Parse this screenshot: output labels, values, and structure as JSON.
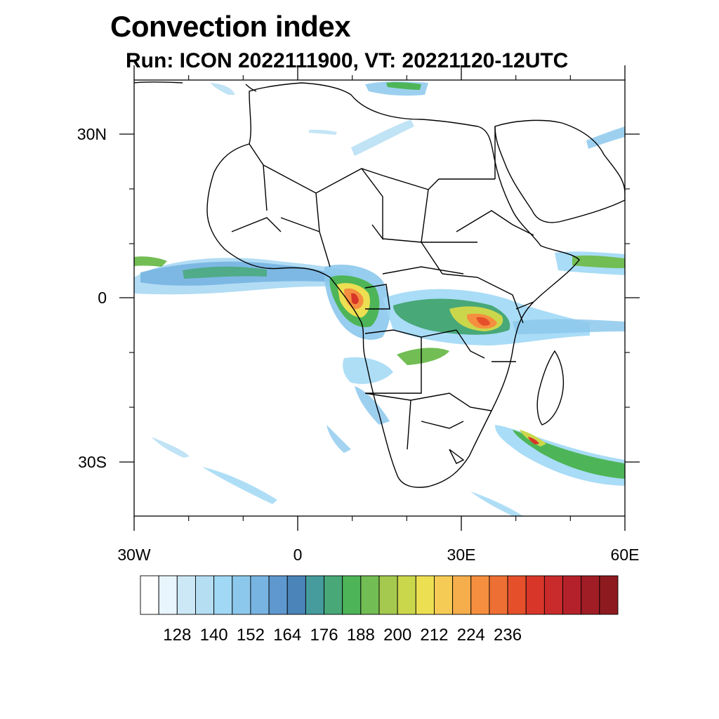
{
  "title": "Convection index",
  "subtitle": "Run: ICON 2022111900,  VT: 20221120-12UTC",
  "map": {
    "region": "Africa",
    "lon_range": [
      -30,
      60
    ],
    "lat_range": [
      -40,
      40
    ],
    "lon_ticks": [
      {
        "value": -30,
        "label": "30W"
      },
      {
        "value": 0,
        "label": "0"
      },
      {
        "value": 30,
        "label": "30E"
      },
      {
        "value": 60,
        "label": "60E"
      }
    ],
    "lat_ticks": [
      {
        "value": 30,
        "label": "30N"
      },
      {
        "value": 0,
        "label": "0"
      },
      {
        "value": -30,
        "label": "30S"
      }
    ]
  },
  "colorbar": {
    "labels": [
      "128",
      "140",
      "152",
      "164",
      "176",
      "188",
      "200",
      "212",
      "224",
      "236"
    ],
    "colors": [
      "#ffffff",
      "#e8f5fc",
      "#cce8f6",
      "#b5def3",
      "#a0d8f5",
      "#8cc8ec",
      "#78b4e2",
      "#5e98cf",
      "#4a84b8",
      "#469c9c",
      "#48a878",
      "#4db557",
      "#72bd54",
      "#a4c94e",
      "#cbd74b",
      "#eddf52",
      "#f5cb55",
      "#f6ad4c",
      "#f58f3f",
      "#ee6f33",
      "#e5502b",
      "#d9362a",
      "#c92a2b",
      "#b5212a",
      "#a01d25",
      "#8d1a1f"
    ]
  }
}
